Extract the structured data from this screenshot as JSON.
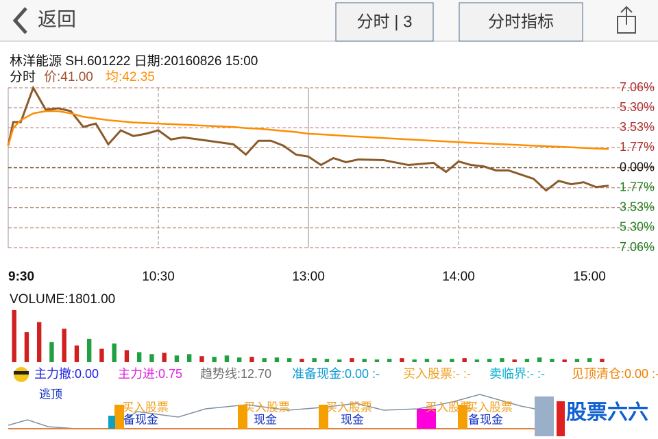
{
  "header": {
    "back": "返回",
    "tab": "分时 | 3",
    "indicator": "分时指标"
  },
  "info": {
    "stock": "林洋能源 SH.601222 日期:20160826 15:00",
    "mode": "分时",
    "price": "价:41.00",
    "avg": "均:42.35"
  },
  "chart_data": [
    {
      "type": "line",
      "x": [
        0,
        2,
        5,
        10,
        15,
        20,
        25,
        30,
        35,
        40,
        45,
        50,
        55,
        60,
        65,
        70,
        80,
        90,
        95,
        100,
        105,
        110,
        115,
        120,
        125,
        130,
        135,
        140,
        150,
        160,
        170,
        175,
        180,
        185,
        190,
        195,
        200,
        210,
        215,
        220,
        225,
        230,
        235,
        240
      ],
      "series": [
        {
          "color": "#8b5a2b",
          "values": [
            1.95,
            4.03,
            4.03,
            7.06,
            5.12,
            5.25,
            5.0,
            3.6,
            3.9,
            2.07,
            3.3,
            2.8,
            3.0,
            3.3,
            2.5,
            2.68,
            2.38,
            2.07,
            1.16,
            2.38,
            2.38,
            1.95,
            1.16,
            0.98,
            0.24,
            0.85,
            0.49,
            0.73,
            0.67,
            0.24,
            0.43,
            -0.37,
            0.55,
            0.24,
            0.12,
            -0.24,
            -0.24,
            -0.98,
            -2.01,
            -1.16,
            -1.46,
            -1.28,
            -1.71,
            -1.59
          ]
        },
        {
          "color": "#ff8c00",
          "values": [
            1.95,
            3.5,
            4.2,
            4.8,
            5.0,
            5.0,
            4.8,
            4.5,
            4.35,
            4.2,
            4.1,
            4.0,
            3.95,
            3.9,
            3.85,
            3.8,
            3.7,
            3.6,
            3.5,
            3.45,
            3.35,
            3.25,
            3.15,
            3.0,
            2.95,
            2.88,
            2.8,
            2.75,
            2.62,
            2.5,
            2.38,
            2.32,
            2.26,
            2.2,
            2.15,
            2.1,
            2.05,
            1.95,
            1.9,
            1.85,
            1.8,
            1.75,
            1.7,
            1.65
          ]
        }
      ],
      "xlim": [
        0,
        240
      ],
      "ylim": [
        -7.06,
        7.06
      ],
      "xticks": [
        {
          "value": 0,
          "label": "9:30"
        },
        {
          "value": 60,
          "label": "10:30"
        },
        {
          "value": 120,
          "label": "13:00"
        },
        {
          "value": 180,
          "label": "14:00"
        },
        {
          "value": 240,
          "label": "15:00"
        }
      ],
      "yticks": [
        {
          "value": 7.06,
          "label": "7.06%"
        },
        {
          "value": 5.3,
          "label": "5.30%"
        },
        {
          "value": 3.53,
          "label": "3.53%"
        },
        {
          "value": 1.77,
          "label": "1.77%"
        },
        {
          "value": 0,
          "label": "0.00%"
        },
        {
          "value": -1.77,
          "label": "1.77%"
        },
        {
          "value": -3.53,
          "label": "3.53%"
        },
        {
          "value": -5.3,
          "label": "5.30%"
        },
        {
          "value": -7.06,
          "label": "7.06%"
        }
      ],
      "grid": true
    },
    {
      "type": "bar",
      "title": "VOLUME:1801.00",
      "ylim": [
        0,
        80
      ],
      "values": [
        78,
        45,
        60,
        30,
        50,
        25,
        35,
        20,
        28,
        18,
        15,
        12,
        14,
        10,
        12,
        9,
        8,
        10,
        7,
        8,
        6,
        7,
        6,
        5,
        6,
        5,
        4,
        6,
        5,
        4,
        5,
        6,
        4,
        5,
        4,
        5,
        6,
        4,
        5,
        6,
        4,
        5,
        7,
        5,
        4,
        5,
        6,
        5
      ],
      "colors": [
        "#d02020",
        "#d02020",
        "#d02020",
        "#20a040",
        "#d02020",
        "#d02020",
        "#20a040",
        "#d02020",
        "#20a040",
        "#d02020",
        "#20a040",
        "#20a040",
        "#d02020",
        "#20a040",
        "#20a040",
        "#d02020",
        "#20a040",
        "#20a040",
        "#20a040",
        "#d02020",
        "#20a040",
        "#20a040",
        "#20a040",
        "#d02020",
        "#20a040",
        "#20a040",
        "#20a040",
        "#d02020",
        "#20a040",
        "#20a040",
        "#20a040",
        "#d02020",
        "#20a040",
        "#20a040",
        "#20a040",
        "#20a040",
        "#d02020",
        "#20a040",
        "#20a040",
        "#20a040",
        "#d02020",
        "#20a040",
        "#20a040",
        "#20a040",
        "#d02020",
        "#20a040",
        "#20a040",
        "#d02020"
      ]
    }
  ],
  "indicator": {
    "items": [
      {
        "text": "主力撤:0.00",
        "color": "#2020e0"
      },
      {
        "text": "主力进:0.75",
        "color": "#e020e0"
      },
      {
        "text": "趋势线:12.70",
        "color": "#707070"
      },
      {
        "text": "准备现金:0.00 :-",
        "color": "#0a9ad0"
      },
      {
        "text": "买入股票:- :-",
        "color": "#f0a020"
      },
      {
        "text": "卖临界:- :-",
        "color": "#10b0d0"
      },
      {
        "text": "见顶清仓:0.00 :-",
        "color": "#f08000"
      }
    ],
    "labels": [
      "逃顶",
      "买入股票",
      "备现金",
      "买入股票",
      "现金",
      "买入股票",
      "现金",
      "买入股票",
      "买入股票",
      "备现金"
    ]
  },
  "watermark": "股票六六"
}
